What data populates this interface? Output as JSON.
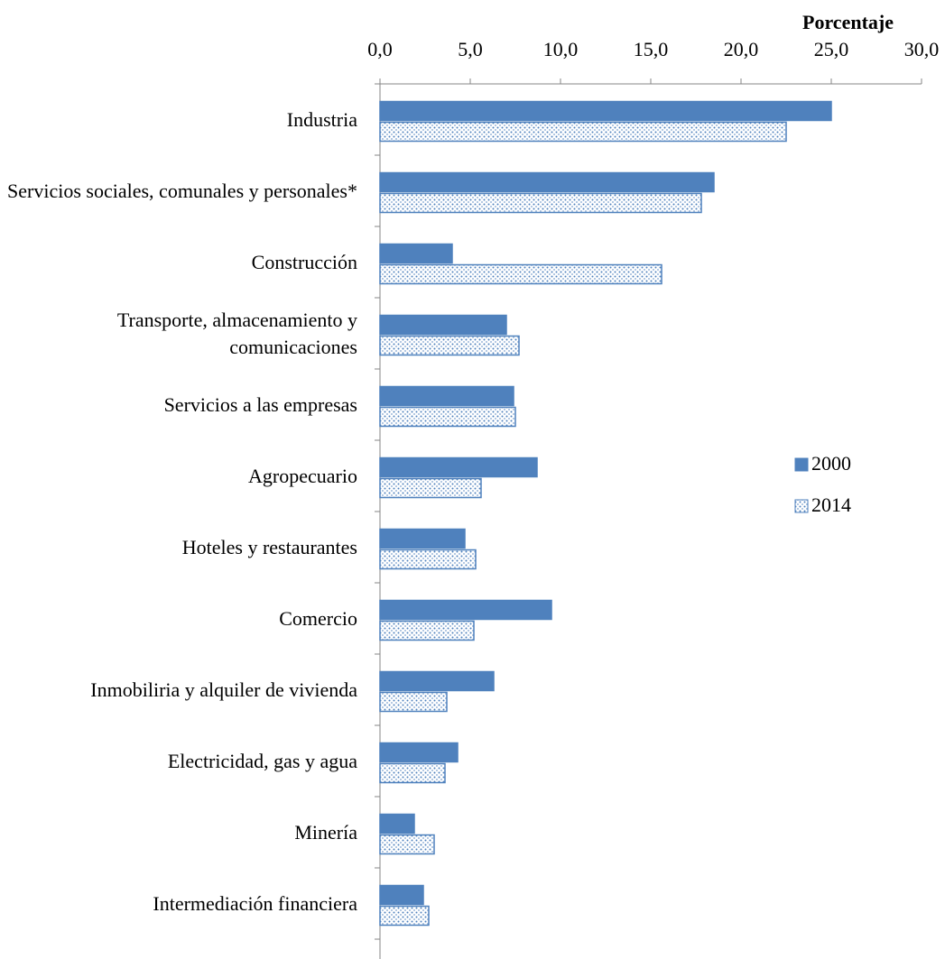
{
  "chart_data": {
    "type": "hbar",
    "xlabel": "Porcentaje",
    "categories": [
      "Industria",
      "Servicios sociales, comunales y personales*",
      "Construcción",
      "Transporte, almacenamiento y comunicaciones",
      "Servicios a las empresas",
      "Agropecuario",
      "Hoteles y restaurantes",
      "Comercio",
      "Inmobiliria y alquiler de vivienda",
      "Electricidad, gas y agua",
      "Minería",
      "Intermediación financiera"
    ],
    "series": [
      {
        "name": "2000",
        "color": "#4f81bd",
        "fill": "solid",
        "values": [
          25.0,
          18.5,
          4.0,
          7.0,
          7.4,
          8.7,
          4.7,
          9.5,
          6.3,
          4.3,
          1.9,
          2.4
        ]
      },
      {
        "name": "2014",
        "color": "#4f81bd",
        "fill": "dotted",
        "values": [
          22.5,
          17.8,
          15.6,
          7.7,
          7.5,
          5.6,
          5.3,
          5.2,
          3.7,
          3.6,
          3.0,
          2.7
        ]
      }
    ],
    "xlim": [
      0,
      30
    ],
    "xticks": [
      {
        "value": 0,
        "label": "0,0"
      },
      {
        "value": 5,
        "label": "5,0"
      },
      {
        "value": 10,
        "label": "10,0"
      },
      {
        "value": 15,
        "label": "15,0"
      },
      {
        "value": 20,
        "label": "20,0"
      },
      {
        "value": 25,
        "label": "25,0"
      },
      {
        "value": 30,
        "label": "30,0"
      }
    ],
    "legend": "right"
  }
}
